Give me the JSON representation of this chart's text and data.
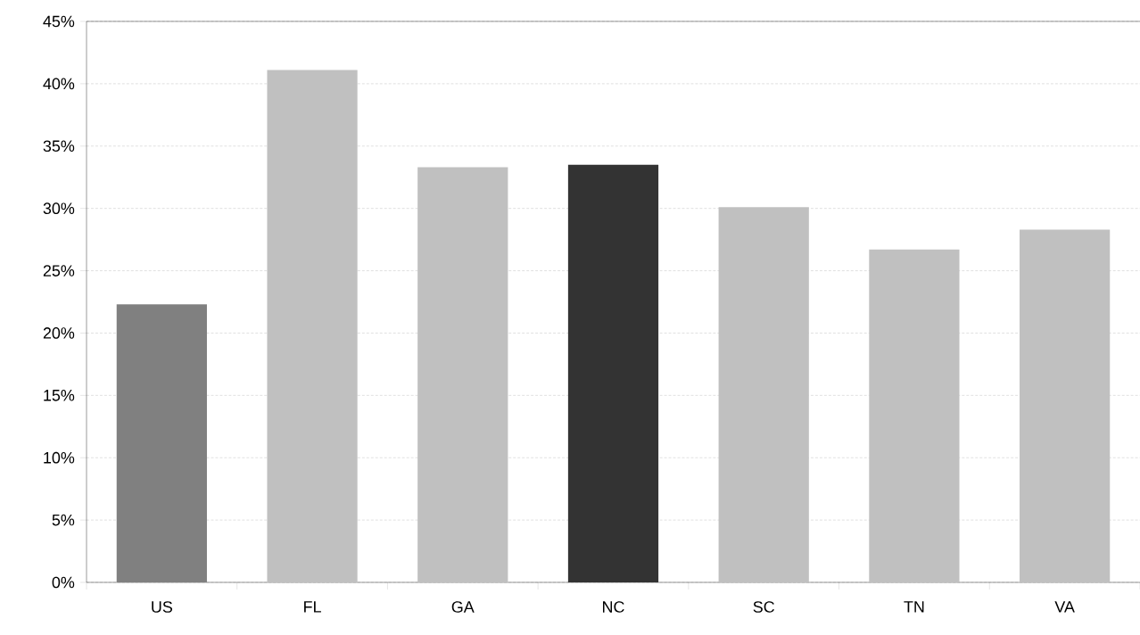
{
  "chart_data": {
    "type": "bar",
    "categories": [
      "US",
      "FL",
      "GA",
      "NC",
      "SC",
      "TN",
      "VA"
    ],
    "values": [
      22.3,
      41.1,
      33.3,
      33.5,
      30.1,
      26.7,
      28.3
    ],
    "colors": [
      "#808080",
      "#c0c0c0",
      "#c0c0c0",
      "#333333",
      "#c0c0c0",
      "#c0c0c0",
      "#c0c0c0"
    ],
    "ylim": [
      0,
      45
    ],
    "yticks": [
      {
        "value": 0,
        "label": "0%"
      },
      {
        "value": 5,
        "label": "5%"
      },
      {
        "value": 10,
        "label": "10%"
      },
      {
        "value": 15,
        "label": "15%"
      },
      {
        "value": 20,
        "label": "20%"
      },
      {
        "value": 25,
        "label": "25%"
      },
      {
        "value": 30,
        "label": "30%"
      },
      {
        "value": 35,
        "label": "35%"
      },
      {
        "value": 40,
        "label": "40%"
      },
      {
        "value": 45,
        "label": "45%"
      }
    ],
    "grid": "y"
  }
}
